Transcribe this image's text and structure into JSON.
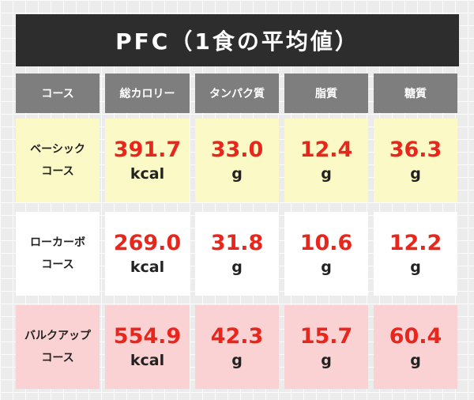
{
  "title": "PFC（1食の平均値）",
  "headers": [
    "コース",
    "総カロリー",
    "タンパク質",
    "脂質",
    "糖質"
  ],
  "rows": [
    {
      "course_line1": "ベーシック",
      "course_line2": "コース",
      "calories": "391.7",
      "calories_unit": "kcal",
      "protein": "33.0",
      "protein_unit": "g",
      "fat": "12.4",
      "fat_unit": "g",
      "carbs": "36.3",
      "carbs_unit": "g"
    },
    {
      "course_line1": "ローカーボ",
      "course_line2": "コース",
      "calories": "269.0",
      "calories_unit": "kcal",
      "protein": "31.8",
      "protein_unit": "g",
      "fat": "10.6",
      "fat_unit": "g",
      "carbs": "12.2",
      "carbs_unit": "g"
    },
    {
      "course_line1": "バルクアップ",
      "course_line2": "コース",
      "calories": "554.9",
      "calories_unit": "kcal",
      "protein": "42.3",
      "protein_unit": "g",
      "fat": "15.7",
      "fat_unit": "g",
      "carbs": "60.4",
      "carbs_unit": "g"
    }
  ],
  "colors": {
    "title_bg": "#2d2d2d",
    "header_bg": "#7e7e7e",
    "value_red": "#e8261c",
    "basic_bg": "#fbf9c6",
    "lowcarb_bg": "#ffffff",
    "bulk_bg": "#fbd2d3"
  }
}
